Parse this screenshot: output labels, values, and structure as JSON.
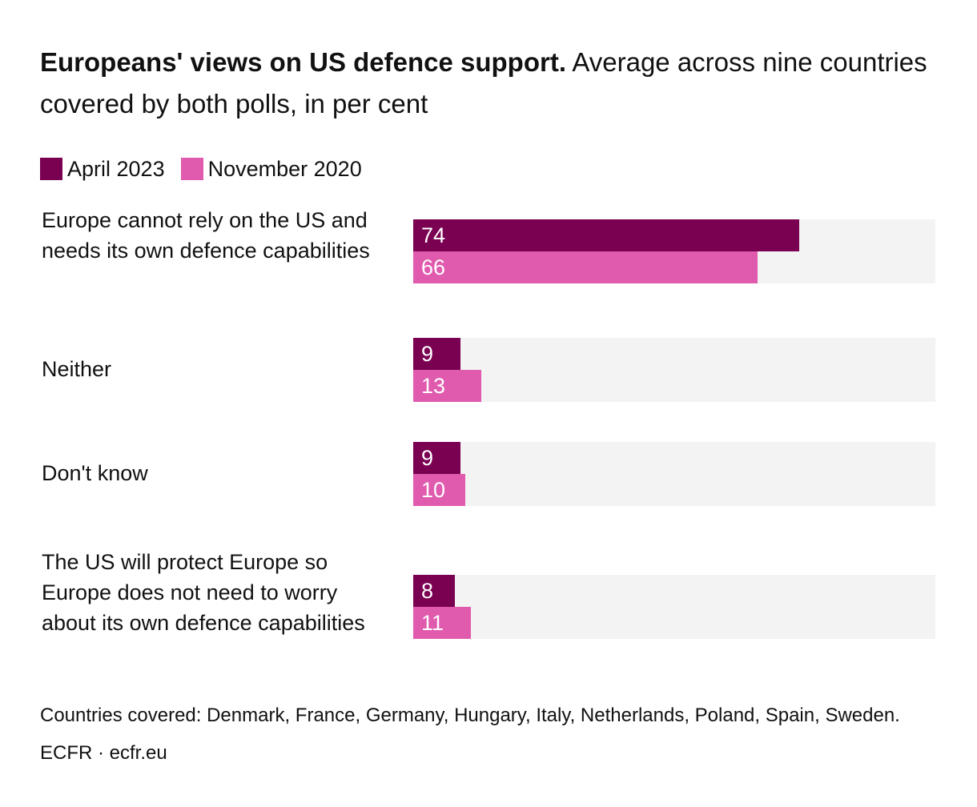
{
  "title": {
    "bold": "Europeans' views on US defence support.",
    "rest": " Average across nine countries covered by both polls, in per cent"
  },
  "colors": {
    "april_2023": "#7a0052",
    "november_2020": "#e05aae",
    "track": "#f3f3f3"
  },
  "chart_data": {
    "type": "bar",
    "orientation": "horizontal",
    "title": "Europeans' views on US defence support. Average across nine countries covered by both polls, in per cent",
    "categories": [
      "Europe cannot rely on the US and needs its own defence capabilities",
      "Neither",
      "Don't know",
      "The US will protect Europe so Europe does not need to worry about its own defence capabilities"
    ],
    "series": [
      {
        "name": "April 2023",
        "values": [
          74,
          9,
          9,
          8
        ]
      },
      {
        "name": "November 2020",
        "values": [
          66,
          13,
          10,
          11
        ]
      }
    ],
    "xlim": [
      0,
      100
    ],
    "legend": "top-left",
    "grid": false,
    "data_labels": true
  },
  "note": "Countries covered: Denmark, France, Germany, Hungary, Italy, Netherlands, Poland, Spain, Sweden.",
  "source": "ECFR · ecfr.eu"
}
